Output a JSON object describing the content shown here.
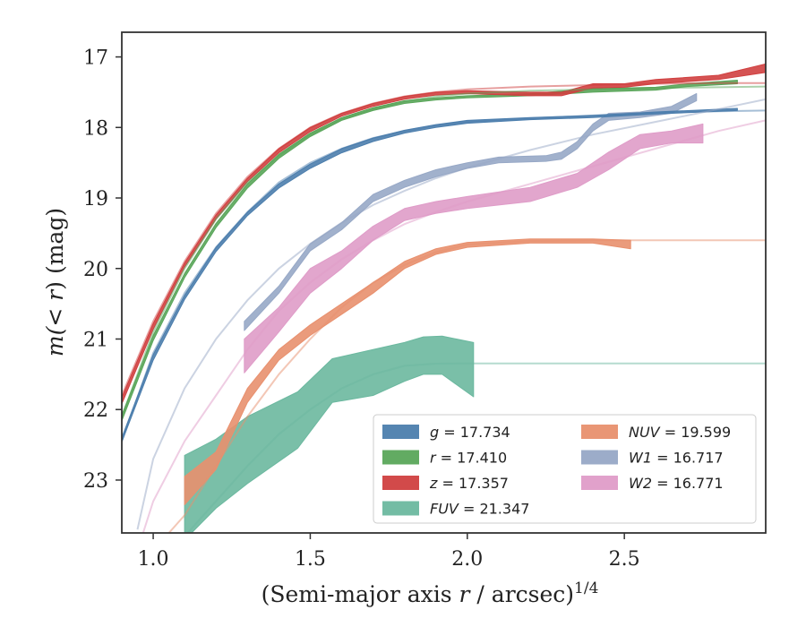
{
  "chart_data": {
    "type": "line",
    "title": "",
    "xlabel": {
      "pre": "(Semi-major axis ",
      "var": "r",
      "post": " / arcsec)",
      "sup": "1/4"
    },
    "ylabel": {
      "pre": "m(",
      "var": "< r",
      "post": ") (mag)"
    },
    "xlim": [
      0.9,
      2.95
    ],
    "ylim": [
      23.75,
      16.65
    ],
    "y_inverted": true,
    "grid": false,
    "legend_position": "lower-right",
    "xticks": [
      1.0,
      1.5,
      2.0,
      2.5
    ],
    "xtick_labels": [
      "1.0",
      "1.5",
      "2.0",
      "2.5"
    ],
    "yticks": [
      17,
      18,
      19,
      20,
      21,
      22,
      23
    ],
    "ytick_labels": [
      "17",
      "18",
      "19",
      "20",
      "21",
      "22",
      "23"
    ],
    "series": [
      {
        "key": "g",
        "label": "g = 17.734",
        "color": "#4c7ead",
        "model": [
          [
            0.9,
            22.45
          ],
          [
            1.0,
            21.2
          ],
          [
            1.1,
            20.35
          ],
          [
            1.2,
            19.7
          ],
          [
            1.3,
            19.2
          ],
          [
            1.4,
            18.78
          ],
          [
            1.5,
            18.5
          ],
          [
            1.6,
            18.3
          ],
          [
            1.7,
            18.15
          ],
          [
            1.8,
            18.05
          ],
          [
            1.9,
            17.97
          ],
          [
            2.0,
            17.92
          ],
          [
            2.2,
            17.87
          ],
          [
            2.4,
            17.83
          ],
          [
            2.6,
            17.79
          ],
          [
            2.8,
            17.77
          ],
          [
            2.95,
            17.76
          ]
        ],
        "band": [
          [
            0.9,
            22.4,
            22.46
          ],
          [
            1.0,
            21.22,
            21.3
          ],
          [
            1.1,
            20.38,
            20.44
          ],
          [
            1.2,
            19.7,
            19.76
          ],
          [
            1.3,
            19.2,
            19.25
          ],
          [
            1.4,
            18.8,
            18.86
          ],
          [
            1.5,
            18.52,
            18.58
          ],
          [
            1.6,
            18.3,
            18.36
          ],
          [
            1.7,
            18.15,
            18.2
          ],
          [
            1.8,
            18.04,
            18.08
          ],
          [
            1.9,
            17.96,
            18.0
          ],
          [
            2.0,
            17.9,
            17.94
          ],
          [
            2.2,
            17.86,
            17.89
          ],
          [
            2.4,
            17.83,
            17.86
          ],
          [
            2.6,
            17.78,
            17.81
          ],
          [
            2.86,
            17.73,
            17.76
          ]
        ]
      },
      {
        "key": "r",
        "label": "r = 17.410",
        "color": "#5aa65a",
        "model": [
          [
            0.9,
            22.1
          ],
          [
            1.0,
            20.9
          ],
          [
            1.1,
            20.0
          ],
          [
            1.2,
            19.3
          ],
          [
            1.3,
            18.78
          ],
          [
            1.4,
            18.4
          ],
          [
            1.5,
            18.1
          ],
          [
            1.6,
            17.88
          ],
          [
            1.7,
            17.74
          ],
          [
            1.8,
            17.63
          ],
          [
            1.9,
            17.56
          ],
          [
            2.0,
            17.52
          ],
          [
            2.2,
            17.48
          ],
          [
            2.4,
            17.46
          ],
          [
            2.6,
            17.44
          ],
          [
            2.8,
            17.43
          ],
          [
            2.95,
            17.42
          ]
        ],
        "band": [
          [
            0.9,
            22.08,
            22.16
          ],
          [
            1.0,
            20.95,
            21.02
          ],
          [
            1.1,
            20.07,
            20.13
          ],
          [
            1.2,
            19.36,
            19.42
          ],
          [
            1.3,
            18.8,
            18.86
          ],
          [
            1.4,
            18.38,
            18.44
          ],
          [
            1.5,
            18.08,
            18.13
          ],
          [
            1.6,
            17.86,
            17.9
          ],
          [
            1.7,
            17.72,
            17.76
          ],
          [
            1.8,
            17.62,
            17.66
          ],
          [
            1.9,
            17.58,
            17.61
          ],
          [
            2.0,
            17.55,
            17.58
          ],
          [
            2.2,
            17.52,
            17.55
          ],
          [
            2.4,
            17.45,
            17.5
          ],
          [
            2.6,
            17.43,
            17.47
          ],
          [
            2.7,
            17.38,
            17.42
          ],
          [
            2.86,
            17.33,
            17.38
          ]
        ]
      },
      {
        "key": "z",
        "label": "z = 17.357",
        "color": "#d04040",
        "model": [
          [
            0.9,
            21.8
          ],
          [
            1.0,
            20.75
          ],
          [
            1.1,
            19.9
          ],
          [
            1.2,
            19.22
          ],
          [
            1.3,
            18.7
          ],
          [
            1.4,
            18.3
          ],
          [
            1.5,
            18.0
          ],
          [
            1.6,
            17.8
          ],
          [
            1.7,
            17.66
          ],
          [
            1.8,
            17.56
          ],
          [
            1.9,
            17.5
          ],
          [
            2.0,
            17.46
          ],
          [
            2.2,
            17.42
          ],
          [
            2.4,
            17.4
          ],
          [
            2.6,
            17.38
          ],
          [
            2.8,
            17.37
          ],
          [
            2.95,
            17.37
          ]
        ],
        "band": [
          [
            0.9,
            21.83,
            21.92
          ],
          [
            1.0,
            20.78,
            20.86
          ],
          [
            1.1,
            19.92,
            19.98
          ],
          [
            1.2,
            19.24,
            19.3
          ],
          [
            1.3,
            18.72,
            18.77
          ],
          [
            1.4,
            18.3,
            18.36
          ],
          [
            1.5,
            18.0,
            18.06
          ],
          [
            1.6,
            17.8,
            17.84
          ],
          [
            1.7,
            17.66,
            17.7
          ],
          [
            1.8,
            17.56,
            17.6
          ],
          [
            1.9,
            17.5,
            17.54
          ],
          [
            2.0,
            17.48,
            17.52
          ],
          [
            2.2,
            17.5,
            17.55
          ],
          [
            2.3,
            17.5,
            17.55
          ],
          [
            2.4,
            17.38,
            17.44
          ],
          [
            2.5,
            17.38,
            17.43
          ],
          [
            2.6,
            17.32,
            17.38
          ],
          [
            2.8,
            17.26,
            17.32
          ],
          [
            2.95,
            17.1,
            17.22
          ]
        ]
      },
      {
        "key": "FUV",
        "label": "FUV = 21.347",
        "color": "#6bb89f",
        "model": [
          [
            1.1,
            23.8
          ],
          [
            1.2,
            23.3
          ],
          [
            1.3,
            22.8
          ],
          [
            1.4,
            22.35
          ],
          [
            1.5,
            22.0
          ],
          [
            1.6,
            21.7
          ],
          [
            1.7,
            21.5
          ],
          [
            1.8,
            21.38
          ],
          [
            1.9,
            21.35
          ],
          [
            2.0,
            21.347
          ],
          [
            2.95,
            21.347
          ]
        ],
        "band": [
          [
            1.1,
            22.65,
            23.85
          ],
          [
            1.2,
            22.42,
            23.4
          ],
          [
            1.3,
            22.1,
            23.05
          ],
          [
            1.46,
            21.75,
            22.55
          ],
          [
            1.57,
            21.28,
            21.9
          ],
          [
            1.7,
            21.15,
            21.8
          ],
          [
            1.8,
            21.05,
            21.6
          ],
          [
            1.86,
            20.97,
            21.5
          ],
          [
            1.92,
            20.96,
            21.5
          ],
          [
            2.02,
            21.05,
            21.82
          ]
        ]
      },
      {
        "key": "NUV",
        "label": "NUV = 19.599",
        "color": "#e8906e",
        "model": [
          [
            1.0,
            24.0
          ],
          [
            1.1,
            23.5
          ],
          [
            1.2,
            22.8
          ],
          [
            1.3,
            22.1
          ],
          [
            1.4,
            21.5
          ],
          [
            1.5,
            21.0
          ],
          [
            1.6,
            20.55
          ],
          [
            1.7,
            20.2
          ],
          [
            1.8,
            19.95
          ],
          [
            1.9,
            19.77
          ],
          [
            2.0,
            19.66
          ],
          [
            2.2,
            19.61
          ],
          [
            2.4,
            19.6
          ],
          [
            2.95,
            19.599
          ]
        ],
        "band": [
          [
            1.1,
            22.95,
            23.35
          ],
          [
            1.2,
            22.6,
            22.85
          ],
          [
            1.3,
            21.7,
            21.9
          ],
          [
            1.4,
            21.15,
            21.3
          ],
          [
            1.5,
            20.8,
            20.95
          ],
          [
            1.6,
            20.5,
            20.65
          ],
          [
            1.7,
            20.2,
            20.35
          ],
          [
            1.8,
            19.9,
            20.0
          ],
          [
            1.9,
            19.72,
            19.8
          ],
          [
            2.0,
            19.63,
            19.7
          ],
          [
            2.2,
            19.58,
            19.64
          ],
          [
            2.4,
            19.58,
            19.64
          ],
          [
            2.52,
            19.6,
            19.72
          ]
        ]
      },
      {
        "key": "W1",
        "label": "W1 = 16.717",
        "color": "#97a8c6",
        "model": [
          [
            0.95,
            23.7
          ],
          [
            1.0,
            22.7
          ],
          [
            1.1,
            21.7
          ],
          [
            1.2,
            21.0
          ],
          [
            1.3,
            20.45
          ],
          [
            1.4,
            20.0
          ],
          [
            1.5,
            19.65
          ],
          [
            1.6,
            19.35
          ],
          [
            1.7,
            19.1
          ],
          [
            1.8,
            18.9
          ],
          [
            1.9,
            18.72
          ],
          [
            2.0,
            18.57
          ],
          [
            2.2,
            18.32
          ],
          [
            2.4,
            18.1
          ],
          [
            2.6,
            17.92
          ],
          [
            2.8,
            17.74
          ],
          [
            2.95,
            17.6
          ]
        ],
        "band": [
          [
            1.29,
            20.75,
            20.88
          ],
          [
            1.4,
            20.25,
            20.35
          ],
          [
            1.5,
            19.65,
            19.75
          ],
          [
            1.6,
            19.35,
            19.45
          ],
          [
            1.7,
            18.95,
            19.05
          ],
          [
            1.8,
            18.75,
            18.85
          ],
          [
            1.9,
            18.6,
            18.7
          ],
          [
            2.0,
            18.5,
            18.58
          ],
          [
            2.1,
            18.42,
            18.5
          ],
          [
            2.25,
            18.4,
            18.48
          ],
          [
            2.3,
            18.35,
            18.45
          ],
          [
            2.35,
            18.2,
            18.3
          ],
          [
            2.4,
            17.95,
            18.05
          ],
          [
            2.45,
            17.8,
            17.9
          ],
          [
            2.55,
            17.78,
            17.86
          ],
          [
            2.65,
            17.7,
            17.8
          ],
          [
            2.73,
            17.52,
            17.62
          ]
        ]
      },
      {
        "key": "W2",
        "label": "W2 = 16.771",
        "color": "#df9cc8",
        "model": [
          [
            0.95,
            24.0
          ],
          [
            1.0,
            23.3
          ],
          [
            1.1,
            22.45
          ],
          [
            1.2,
            21.8
          ],
          [
            1.3,
            21.15
          ],
          [
            1.4,
            20.6
          ],
          [
            1.5,
            20.2
          ],
          [
            1.6,
            19.87
          ],
          [
            1.7,
            19.6
          ],
          [
            1.8,
            19.37
          ],
          [
            1.9,
            19.2
          ],
          [
            2.0,
            19.05
          ],
          [
            2.2,
            18.8
          ],
          [
            2.4,
            18.55
          ],
          [
            2.6,
            18.3
          ],
          [
            2.8,
            18.05
          ],
          [
            2.95,
            17.9
          ]
        ],
        "band": [
          [
            1.29,
            21.0,
            21.48
          ],
          [
            1.4,
            20.55,
            20.9
          ],
          [
            1.5,
            20.0,
            20.35
          ],
          [
            1.6,
            19.75,
            20.0
          ],
          [
            1.7,
            19.4,
            19.6
          ],
          [
            1.8,
            19.15,
            19.32
          ],
          [
            1.9,
            19.05,
            19.22
          ],
          [
            2.0,
            18.98,
            19.15
          ],
          [
            2.2,
            18.85,
            19.05
          ],
          [
            2.35,
            18.65,
            18.85
          ],
          [
            2.45,
            18.35,
            18.6
          ],
          [
            2.55,
            18.1,
            18.3
          ],
          [
            2.65,
            18.05,
            18.22
          ],
          [
            2.75,
            17.95,
            18.22
          ]
        ]
      }
    ]
  }
}
